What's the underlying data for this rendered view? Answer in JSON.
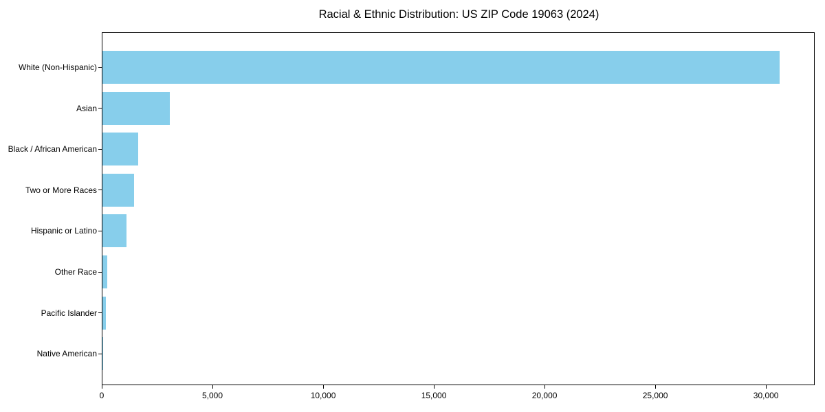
{
  "chart_data": {
    "type": "bar",
    "orientation": "horizontal",
    "title": "Racial & Ethnic Distribution: US ZIP Code 19063 (2024)",
    "categories": [
      "White (Non-Hispanic)",
      "Asian",
      "Black / African American",
      "Two or More Races",
      "Hispanic or Latino",
      "Other Race",
      "Pacific Islander",
      "Native American"
    ],
    "values": [
      30650,
      3040,
      1620,
      1430,
      1090,
      230,
      160,
      20
    ],
    "xlabel": "",
    "ylabel": "",
    "xlim": [
      0,
      32200
    ],
    "xticks": [
      0,
      5000,
      10000,
      15000,
      20000,
      25000,
      30000
    ],
    "xtick_labels": [
      "0",
      "5,000",
      "10,000",
      "15,000",
      "20,000",
      "25,000",
      "30,000"
    ],
    "bar_color": "#87ceeb",
    "axis_color": "#000000",
    "text_color": "#000000",
    "background": "#ffffff",
    "grid": false,
    "legend": false
  }
}
